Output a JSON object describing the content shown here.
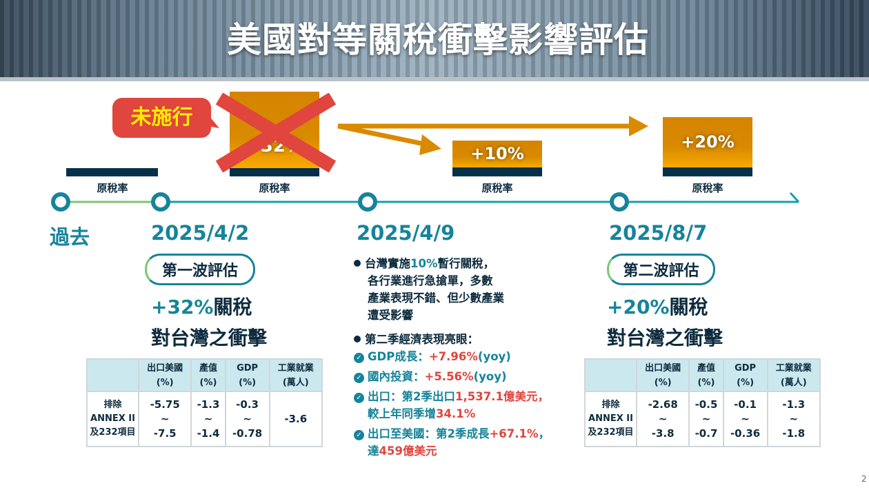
{
  "title": "美國對等關稅衝擊影響評估",
  "callout": "未施行",
  "bars": [
    {
      "label": "原稅率",
      "value": ""
    },
    {
      "label": "原稅率",
      "value": "+32%"
    },
    {
      "label": "原稅率",
      "value": "+10%"
    },
    {
      "label": "原稅率",
      "value": "+20%"
    }
  ],
  "timeline": [
    {
      "date": "過去"
    },
    {
      "date": "2025/4/2",
      "badge": "第一波評估",
      "line1_accent": "+32%",
      "line1_rest": "關稅",
      "line2": "對台灣之衝擊"
    },
    {
      "date": "2025/4/9"
    },
    {
      "date": "2025/8/7",
      "badge": "第二波評估",
      "line1_accent": "+20%",
      "line1_rest": "關稅",
      "line2": "對台灣之衝擊"
    }
  ],
  "table_headers": [
    "出口美國",
    "(%)",
    "產值",
    "(%)",
    "GDP",
    "(%)",
    "工業就業",
    "(萬人)"
  ],
  "row_header": [
    "排除",
    "ANNEX II",
    "及232項目"
  ],
  "range_sep": "~",
  "table1": [
    [
      "-5.75",
      "-7.5"
    ],
    [
      "-1.3",
      "-1.4"
    ],
    [
      "-0.3",
      "-0.78"
    ],
    [
      "-3.6"
    ]
  ],
  "table2": [
    [
      "-2.68",
      "-3.8"
    ],
    [
      "-0.5",
      "-0.7"
    ],
    [
      "-0.1",
      "-0.36"
    ],
    [
      "-1.3",
      "-1.8"
    ]
  ],
  "middle": {
    "b1_a": "台灣實施",
    "b1_b": "10%",
    "b1_c": "暫行關稅，",
    "b1_l2": "各行業進行急搶單，多數",
    "b1_l3": "產業表現不錯、但少數產業",
    "b1_l4": "遭受影響",
    "b2": "第二季經濟表現亮眼：",
    "c1_a": "GDP成長：",
    "c1_b": "+7.96%",
    "c1_c": "(yoy)",
    "c2_a": "國內投資：",
    "c2_b": "+5.56%",
    "c2_c": "(yoy)",
    "c3_a": "出口：第2季出口",
    "c3_b": "1,537.1億",
    "c3_c": "美元，",
    "c3_l2a": "較上年同季增",
    "c3_l2b": "34.1%",
    "c4_a": "出口至美國：第2季成長",
    "c4_b": "+67.1%",
    "c4_c": "，",
    "c4_l2a": "達",
    "c4_l2b": "459億",
    "c4_l2c": "美元"
  },
  "page_number": "2"
}
